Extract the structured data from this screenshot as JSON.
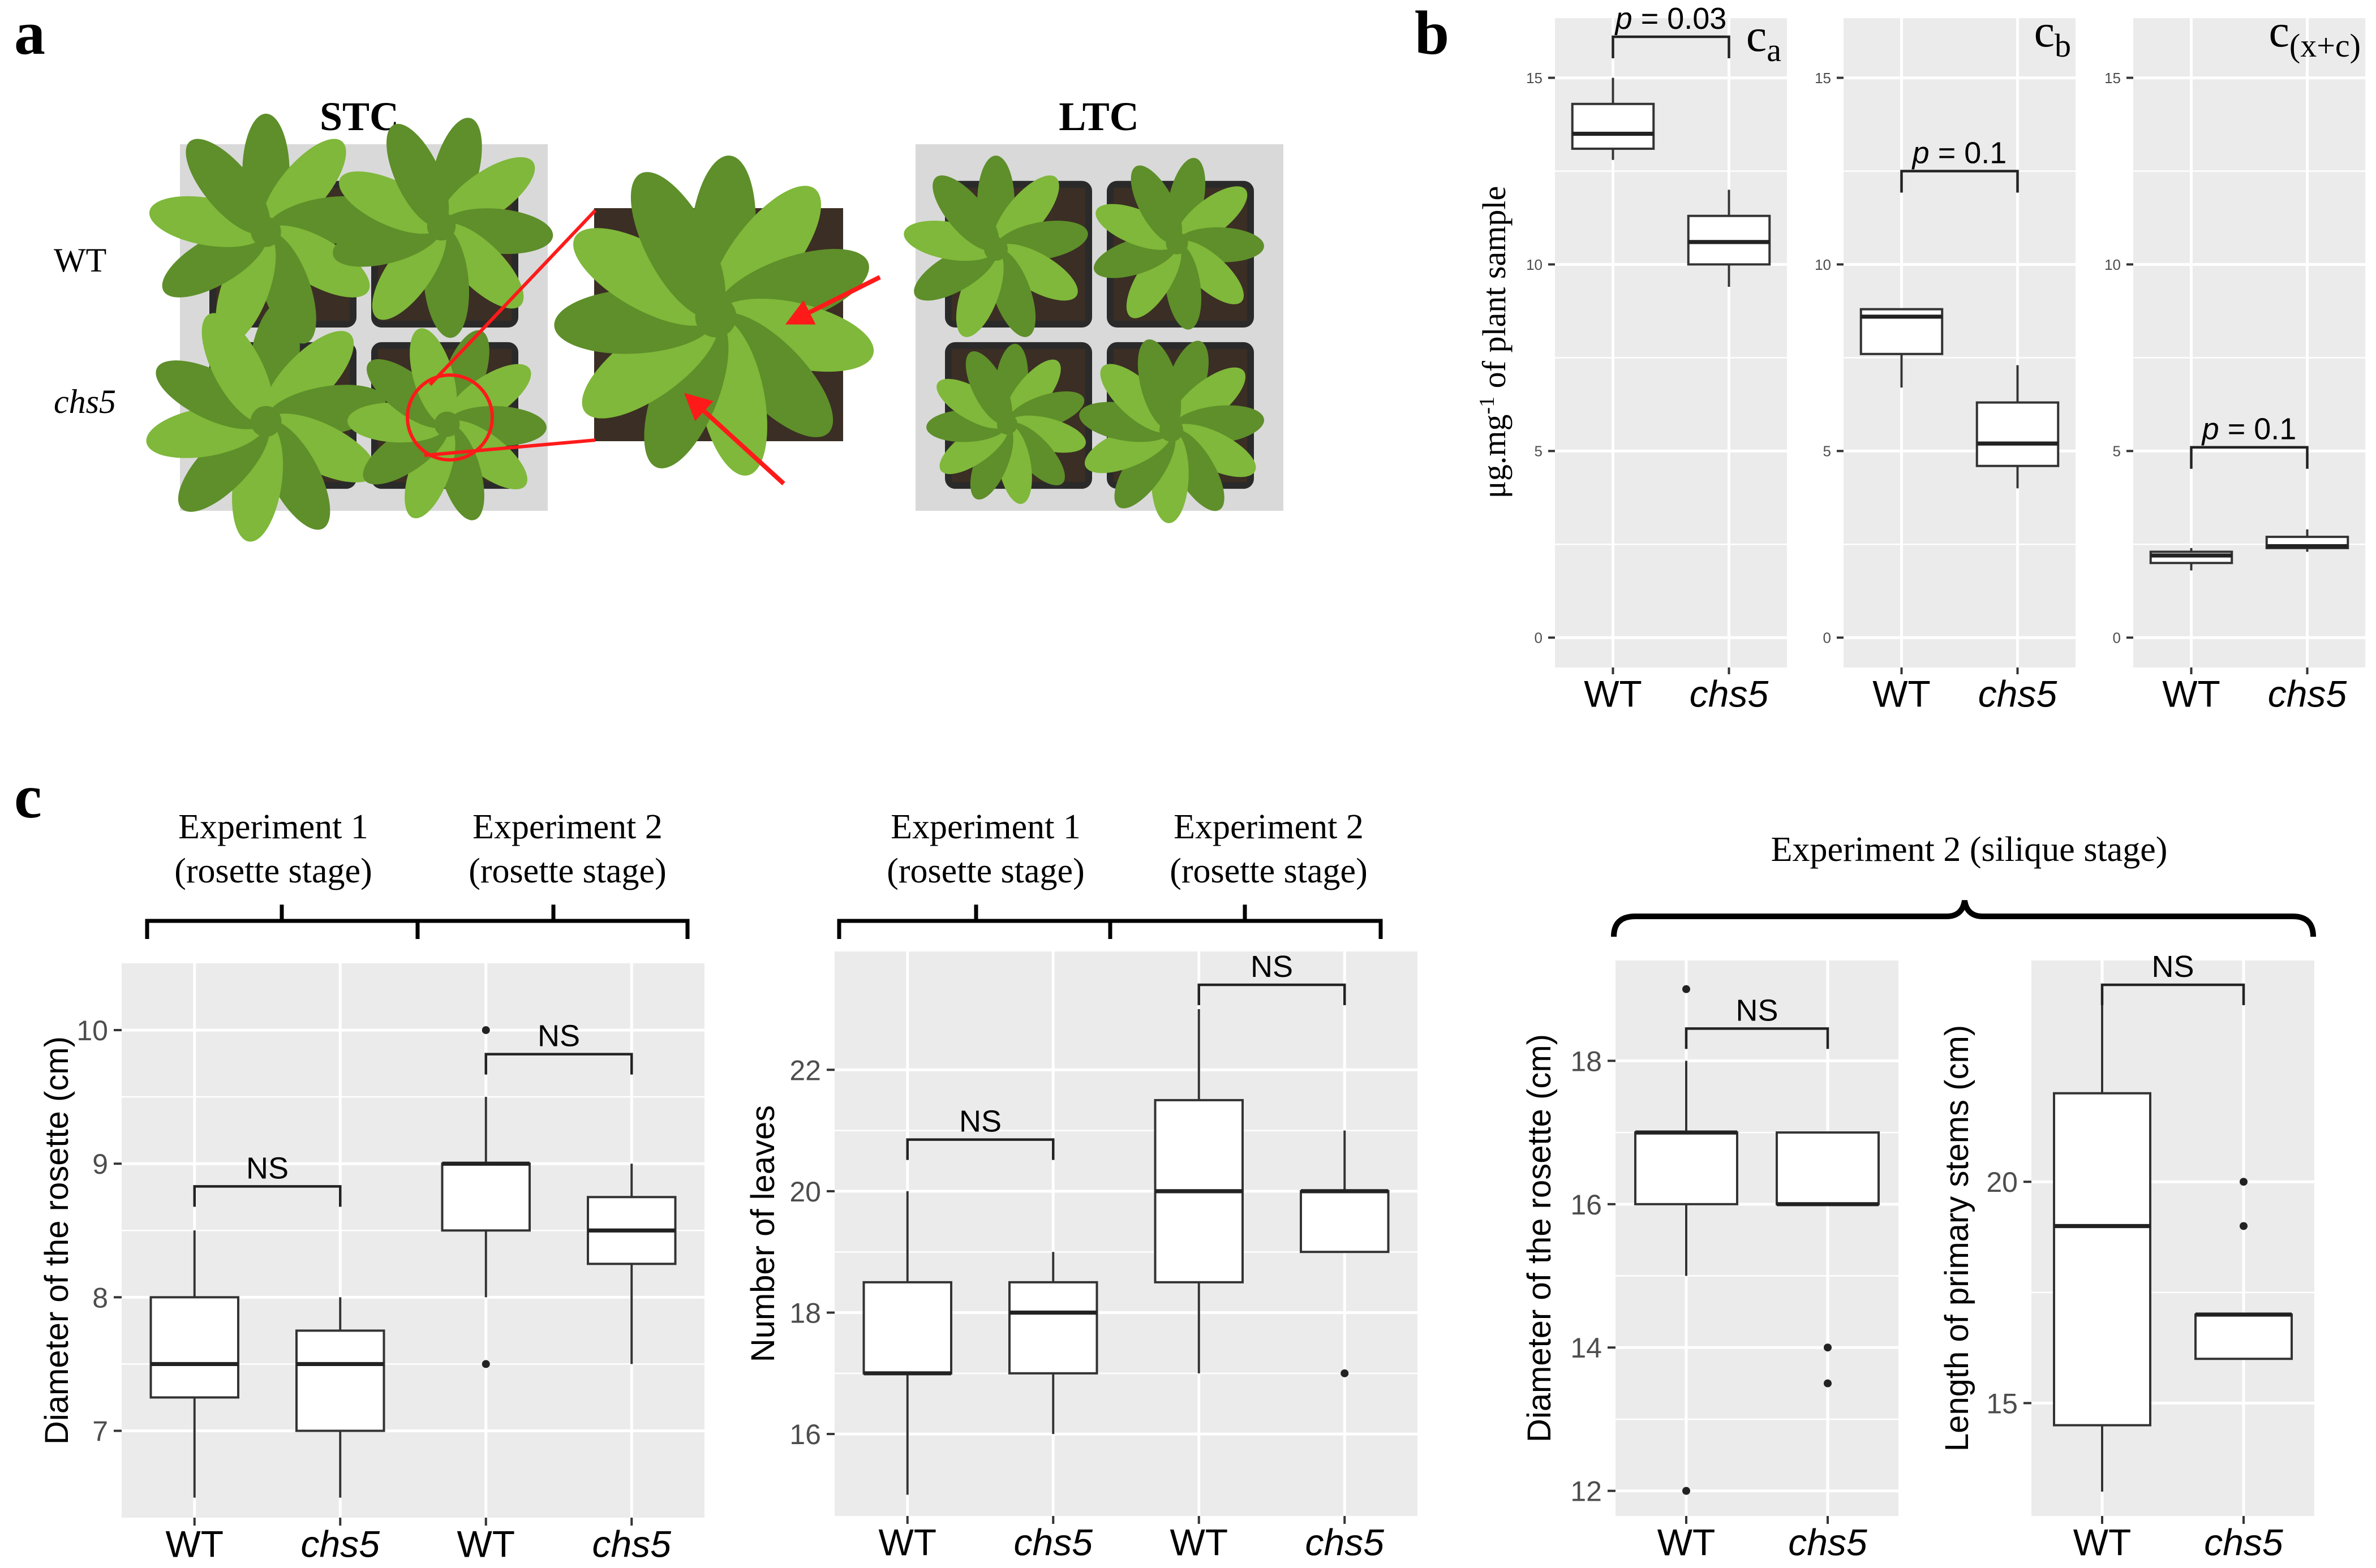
{
  "panel_letters": {
    "a": "a",
    "b": "b",
    "c": "c"
  },
  "colors": {
    "plot_bg": "#ebebeb",
    "grid": "#ffffff",
    "ink": "#000000",
    "arrow": "#ff1a1a",
    "photo_bg": "#d9d9d9",
    "soil": "#3b2e24",
    "leaf": "#7fb83a",
    "leaf_dark": "#5e8f2a"
  },
  "panel_a": {
    "photo_left_title": "STC",
    "photo_right_title": "LTC",
    "row_labels": [
      "WT",
      "chs5"
    ],
    "photo_left_icon": "rosette-photo-stc",
    "photo_zoom_icon": "rosette-zoom-photo",
    "photo_right_icon": "rosette-photo-ltc"
  },
  "panel_c_headers": {
    "diameter_rosette_stage": [
      "Experiment 1",
      "(rosette stage)",
      "Experiment 2",
      "(rosette stage)"
    ],
    "leaves_rosette_stage": [
      "Experiment 1",
      "(rosette stage)",
      "Experiment 2",
      "(rosette stage)"
    ],
    "silique_stage": "Experiment 2 (silique stage)"
  },
  "chart_data": [
    {
      "id": "b1",
      "type": "box",
      "title": "ca",
      "title_main": "c",
      "title_sub": "a",
      "ylabel": "μg.mg-1 of plant sample",
      "ylabel_parts": [
        "μg.mg",
        "-1",
        " of plant sample"
      ],
      "ylim": [
        -0.8,
        16.6
      ],
      "yticks": [
        0,
        5,
        10,
        15
      ],
      "grid": true,
      "categories": [
        "WT",
        "chs5"
      ],
      "boxes": [
        {
          "group": "WT",
          "whisker_low": 12.8,
          "q1": 13.1,
          "median": 13.5,
          "q3": 14.3,
          "whisker_high": 15.0,
          "outliers": []
        },
        {
          "group": "chs5",
          "whisker_low": 9.4,
          "q1": 10.0,
          "median": 10.6,
          "q3": 11.3,
          "whisker_high": 12.0,
          "outliers": []
        }
      ],
      "comparisons": [
        {
          "from": 0,
          "to": 1,
          "y": 16.1,
          "label": "p = 0.03"
        }
      ]
    },
    {
      "id": "b2",
      "type": "box",
      "title": "cb",
      "title_main": "c",
      "title_sub": "b",
      "ylim": [
        -0.8,
        16.6
      ],
      "yticks": [
        0,
        5,
        10,
        15
      ],
      "grid": true,
      "categories": [
        "WT",
        "chs5"
      ],
      "boxes": [
        {
          "group": "WT",
          "whisker_low": 6.7,
          "q1": 7.6,
          "median": 8.6,
          "q3": 8.8,
          "whisker_high": 8.8,
          "outliers": []
        },
        {
          "group": "chs5",
          "whisker_low": 4.0,
          "q1": 4.6,
          "median": 5.2,
          "q3": 6.3,
          "whisker_high": 7.3,
          "outliers": []
        }
      ],
      "comparisons": [
        {
          "from": 0,
          "to": 1,
          "y": 12.5,
          "label": "p = 0.1"
        }
      ]
    },
    {
      "id": "b3",
      "type": "box",
      "title": "c(x+c)",
      "title_main": "c",
      "title_sub": "(x+c)",
      "ylim": [
        -0.8,
        16.6
      ],
      "yticks": [
        0,
        5,
        10,
        15
      ],
      "grid": true,
      "categories": [
        "WT",
        "chs5"
      ],
      "boxes": [
        {
          "group": "WT",
          "whisker_low": 1.8,
          "q1": 2.0,
          "median": 2.2,
          "q3": 2.3,
          "whisker_high": 2.4,
          "outliers": []
        },
        {
          "group": "chs5",
          "whisker_low": 2.3,
          "q1": 2.4,
          "median": 2.45,
          "q3": 2.7,
          "whisker_high": 2.9,
          "outliers": []
        }
      ],
      "comparisons": [
        {
          "from": 0,
          "to": 1,
          "y": 5.1,
          "label": "p = 0.1"
        }
      ]
    },
    {
      "id": "c1",
      "type": "box",
      "ylabel": "Diameter of the rosette (cm)",
      "ylim": [
        6.35,
        10.5
      ],
      "yticks": [
        7,
        8,
        9,
        10
      ],
      "grid": true,
      "categories": [
        "WT",
        "chs5",
        "WT",
        "chs5"
      ],
      "boxes": [
        {
          "group": "WT",
          "whisker_low": 6.5,
          "q1": 7.25,
          "median": 7.5,
          "q3": 8.0,
          "whisker_high": 8.5,
          "outliers": []
        },
        {
          "group": "chs5",
          "whisker_low": 6.5,
          "q1": 7.0,
          "median": 7.5,
          "q3": 7.75,
          "whisker_high": 8.0,
          "outliers": []
        },
        {
          "group": "WT",
          "whisker_low": 8.0,
          "q1": 8.5,
          "median": 9.0,
          "q3": 9.0,
          "whisker_high": 9.5,
          "outliers": [
            10.0,
            7.5
          ]
        },
        {
          "group": "chs5",
          "whisker_low": 7.5,
          "q1": 8.25,
          "median": 8.5,
          "q3": 8.75,
          "whisker_high": 9.0,
          "outliers": []
        }
      ],
      "comparisons": [
        {
          "from": 0,
          "to": 1,
          "y": 8.83,
          "label": "NS"
        },
        {
          "from": 2,
          "to": 3,
          "y": 9.82,
          "label": "NS"
        }
      ]
    },
    {
      "id": "c2",
      "type": "box",
      "ylabel": "Number of leaves",
      "ylim": [
        14.65,
        23.95
      ],
      "yticks": [
        16,
        18,
        20,
        22
      ],
      "grid": true,
      "categories": [
        "WT",
        "chs5",
        "WT",
        "chs5"
      ],
      "boxes": [
        {
          "group": "WT",
          "whisker_low": 15.0,
          "q1": 17.0,
          "median": 17.0,
          "q3": 18.5,
          "whisker_high": 20.0,
          "outliers": []
        },
        {
          "group": "chs5",
          "whisker_low": 16.0,
          "q1": 17.0,
          "median": 18.0,
          "q3": 18.5,
          "whisker_high": 19.0,
          "outliers": []
        },
        {
          "group": "WT",
          "whisker_low": 17.0,
          "q1": 18.5,
          "median": 20.0,
          "q3": 21.5,
          "whisker_high": 23.0,
          "outliers": []
        },
        {
          "group": "chs5",
          "whisker_low": 19.0,
          "q1": 19.0,
          "median": 20.0,
          "q3": 20.0,
          "whisker_high": 21.0,
          "outliers": [
            17.0
          ]
        }
      ],
      "comparisons": [
        {
          "from": 0,
          "to": 1,
          "y": 20.85,
          "label": "NS"
        },
        {
          "from": 2,
          "to": 3,
          "y": 23.4,
          "label": "NS"
        }
      ]
    },
    {
      "id": "c3",
      "type": "box",
      "ylabel": "Diameter of the rosette (cm)",
      "ylim": [
        11.65,
        19.4
      ],
      "yticks": [
        12,
        14,
        16,
        18
      ],
      "grid": true,
      "categories": [
        "WT",
        "chs5"
      ],
      "boxes": [
        {
          "group": "WT",
          "whisker_low": 15.0,
          "q1": 16.0,
          "median": 17.0,
          "q3": 17.0,
          "whisker_high": 18.0,
          "outliers": [
            19.0,
            12.0
          ]
        },
        {
          "group": "chs5",
          "whisker_low": 16.0,
          "q1": 16.0,
          "median": 16.0,
          "q3": 17.0,
          "whisker_high": 17.0,
          "outliers": [
            14.0,
            13.5
          ]
        }
      ],
      "comparisons": [
        {
          "from": 0,
          "to": 1,
          "y": 18.45,
          "label": "NS"
        }
      ]
    },
    {
      "id": "c4",
      "type": "box",
      "ylabel": "Length of primary stems (cm)",
      "ylim": [
        12.45,
        25.0
      ],
      "yticks": [
        15,
        20
      ],
      "grid": true,
      "categories": [
        "WT",
        "chs5"
      ],
      "boxes": [
        {
          "group": "WT",
          "whisker_low": 13.0,
          "q1": 14.5,
          "median": 19.0,
          "q3": 22.0,
          "whisker_high": 24.0,
          "outliers": []
        },
        {
          "group": "chs5",
          "whisker_low": 16.0,
          "q1": 16.0,
          "median": 17.0,
          "q3": 17.0,
          "whisker_high": 17.0,
          "outliers": [
            20.0,
            19.0
          ]
        }
      ],
      "comparisons": [
        {
          "from": 0,
          "to": 1,
          "y": 24.45,
          "label": "NS"
        }
      ]
    }
  ]
}
